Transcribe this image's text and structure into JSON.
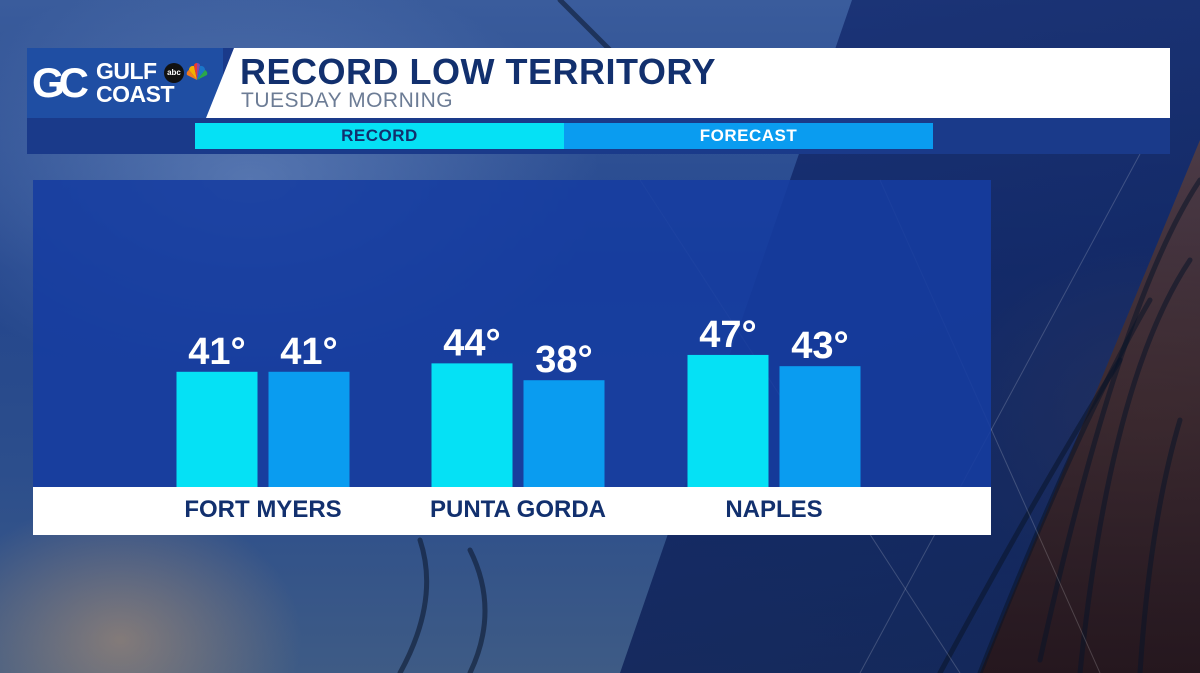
{
  "broadcast": {
    "logo_gc": "GC",
    "logo_line1": "GULF",
    "logo_line2": "COAST",
    "network_badge": "abc",
    "network_icon": "nbc-peacock-icon"
  },
  "colors": {
    "record": "#05e1f5",
    "forecast": "#0a9cf0",
    "title": "#12306e",
    "subtitle": "#6c7c95",
    "label_text": "#12306e",
    "value_text": "#ffffff"
  },
  "chart_data": {
    "type": "bar",
    "title": "RECORD LOW TERRITORY",
    "subtitle": "TUESDAY MORNING",
    "categories": [
      "FORT MYERS",
      "PUNTA GORDA",
      "NAPLES"
    ],
    "series": [
      {
        "name": "RECORD",
        "values": [
          41,
          44,
          47
        ],
        "labels": [
          "41°",
          "44°",
          "47°"
        ]
      },
      {
        "name": "FORECAST",
        "values": [
          41,
          38,
          43
        ],
        "labels": [
          "41°",
          "38°",
          "43°"
        ]
      }
    ],
    "ylim": [
      0,
      100
    ],
    "xlabel": "",
    "ylabel": "",
    "grid": false,
    "legend_position": "top"
  }
}
